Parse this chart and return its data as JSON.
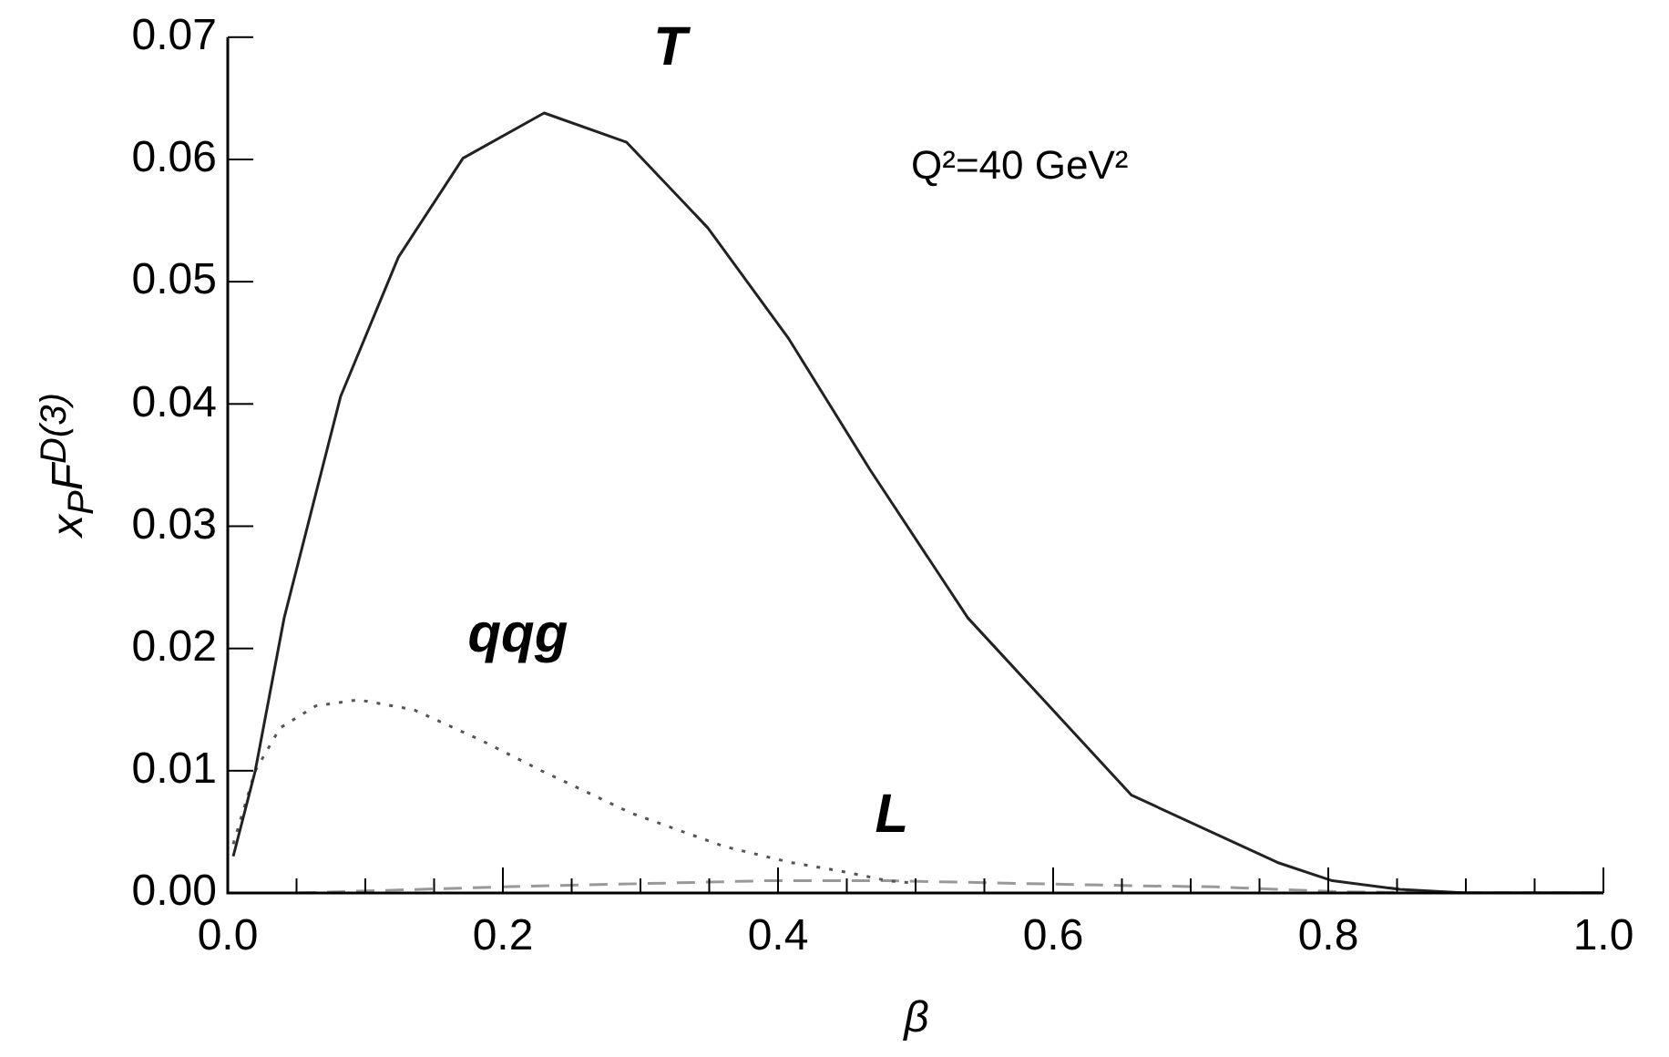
{
  "chart_data": {
    "type": "line",
    "xlabel": "β",
    "ylabel": "x$_{P}$F$^{D(3)}$",
    "annotations": [
      "Q²=40 GeV²"
    ],
    "marker": "none",
    "grid": false,
    "legend": false,
    "xlim": [
      0,
      1
    ],
    "ylim": [
      0,
      0.07
    ],
    "xticks": [
      {
        "value": 0,
        "label": "0.0"
      },
      {
        "value": 0.05,
        "label": null
      },
      {
        "value": 0.1,
        "label": null
      },
      {
        "value": 0.15,
        "label": null
      },
      {
        "value": 0.2,
        "label": "0.2"
      },
      {
        "value": 0.25,
        "label": null
      },
      {
        "value": 0.3,
        "label": null
      },
      {
        "value": 0.35,
        "label": null
      },
      {
        "value": 0.4,
        "label": "0.4"
      },
      {
        "value": 0.45,
        "label": null
      },
      {
        "value": 0.5,
        "label": null
      },
      {
        "value": 0.55,
        "label": null
      },
      {
        "value": 0.6,
        "label": "0.6"
      },
      {
        "value": 0.65,
        "label": null
      },
      {
        "value": 0.7,
        "label": null
      },
      {
        "value": 0.75,
        "label": null
      },
      {
        "value": 0.8,
        "label": "0.8"
      },
      {
        "value": 0.85,
        "label": null
      },
      {
        "value": 0.9,
        "label": null
      },
      {
        "value": 0.95,
        "label": null
      },
      {
        "value": 1,
        "label": "1.0"
      }
    ],
    "yticks": [
      {
        "value": 0,
        "label": "0.00"
      },
      {
        "value": 0.01,
        "label": "0.01"
      },
      {
        "value": 0.02,
        "label": "0.02"
      },
      {
        "value": 0.03,
        "label": "0.03"
      },
      {
        "value": 0.04,
        "label": "0.04"
      },
      {
        "value": 0.05,
        "label": "0.05"
      },
      {
        "value": 0.06,
        "label": "0.06"
      },
      {
        "value": 0.07,
        "label": "0.07"
      }
    ],
    "series": [
      {
        "name": "T",
        "color": "#222222",
        "line_style": "solid",
        "x": [
          0.004,
          0.02,
          0.041,
          0.082,
          0.124,
          0.171,
          0.23,
          0.29,
          0.349,
          0.408,
          0.467,
          0.538,
          0.657,
          0.763,
          0.803,
          0.852,
          0.9,
          1.0
        ],
        "values": [
          0.003,
          0.01,
          0.0225,
          0.0406,
          0.052,
          0.0601,
          0.0638,
          0.0614,
          0.0544,
          0.0453,
          0.0346,
          0.0225,
          0.008,
          0.0025,
          0.001,
          0.0003,
          0,
          0
        ]
      },
      {
        "name": "qqg",
        "color": "#555555",
        "line_style": "dotted",
        "x": [
          0.004,
          0.02,
          0.038,
          0.064,
          0.095,
          0.135,
          0.184,
          0.228,
          0.294,
          0.361,
          0.409,
          0.445,
          0.48,
          0.5
        ],
        "values": [
          0.004,
          0.01,
          0.0135,
          0.0153,
          0.0158,
          0.015,
          0.0125,
          0.01,
          0.0065,
          0.0038,
          0.0025,
          0.0018,
          0.001,
          0.0008
        ]
      },
      {
        "name": "L",
        "color": "#999999",
        "line_style": "dashed",
        "x": [
          0.051,
          0.2,
          0.391,
          0.48,
          0.657,
          0.719,
          0.807,
          0.9,
          1.0
        ],
        "values": [
          0,
          0.0005,
          0.001,
          0.001,
          0.0006,
          0.0005,
          0.0001,
          0,
          0
        ]
      }
    ]
  }
}
